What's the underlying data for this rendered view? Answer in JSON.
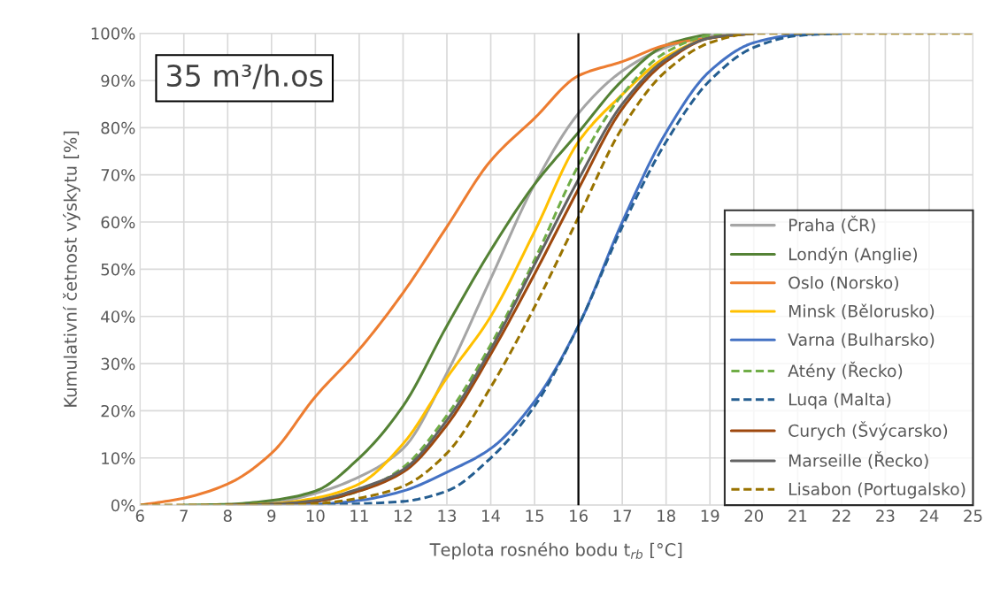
{
  "chart_data": {
    "type": "line",
    "xlabel": "Teplota rosného bodu t$_{rb}$ [°C]",
    "ylabel": "Kumulativní četnost výskytu [%]",
    "annotations": [
      "35 m³/h.os"
    ],
    "x": [
      6,
      7,
      8,
      9,
      10,
      11,
      12,
      13,
      14,
      15,
      16,
      17,
      18,
      19,
      20,
      21,
      22,
      23,
      24,
      25
    ],
    "series": [
      {
        "name": "Praha (ČR)",
        "color": "#a5a5a5",
        "line_style": "solid",
        "values": [
          null,
          null,
          0,
          0.5,
          2.5,
          6,
          12,
          28,
          48,
          68,
          83,
          92,
          97,
          99.5,
          100,
          null,
          null,
          null,
          null,
          null
        ]
      },
      {
        "name": "Londýn (Anglie)",
        "color": "#548235",
        "line_style": "solid",
        "values": [
          null,
          0,
          0.2,
          1,
          3,
          10,
          21,
          38,
          54,
          68,
          79,
          90,
          97.5,
          100,
          null,
          null,
          null,
          null,
          null,
          null
        ]
      },
      {
        "name": "Oslo (Norsko)",
        "color": "#ed7d31",
        "line_style": "solid",
        "values": [
          0,
          1.5,
          4.5,
          11,
          23,
          33,
          45,
          59,
          73,
          82,
          91,
          94,
          97.5,
          99,
          100,
          null,
          null,
          null,
          null,
          null
        ]
      },
      {
        "name": "Minsk (Bělorusko)",
        "color": "#ffc000",
        "line_style": "solid",
        "values": [
          null,
          null,
          0,
          0.3,
          1.5,
          4.5,
          13,
          27,
          40,
          58,
          77,
          87,
          95,
          99,
          100,
          null,
          null,
          null,
          null,
          null
        ]
      },
      {
        "name": "Varna (Bulharsko)",
        "color": "#4472c4",
        "line_style": "solid",
        "values": [
          null,
          null,
          null,
          0,
          0.2,
          1,
          3,
          7,
          12,
          22,
          38,
          60,
          79,
          92,
          98,
          99.7,
          100,
          null,
          null,
          null
        ]
      },
      {
        "name": "Atény (Řecko)",
        "color": "#70ad47",
        "line_style": "dashed",
        "values": [
          null,
          null,
          0,
          0.2,
          0.8,
          3,
          8,
          19,
          34,
          52,
          72,
          87,
          96,
          99.5,
          100,
          null,
          null,
          null,
          null,
          null
        ]
      },
      {
        "name": "Luqa (Malta)",
        "color": "#255e91",
        "line_style": "dashed",
        "values": [
          null,
          null,
          null,
          null,
          0,
          0.3,
          0.8,
          3,
          10,
          21,
          38,
          59,
          77,
          90,
          97,
          99.5,
          100,
          null,
          null,
          null
        ]
      },
      {
        "name": "Curych (Švýcarsko)",
        "color": "#9e480e",
        "line_style": "solid",
        "values": [
          null,
          null,
          0,
          0.2,
          0.8,
          3,
          7,
          17,
          32,
          49,
          67,
          84,
          94,
          99,
          100,
          null,
          null,
          null,
          null,
          null
        ]
      },
      {
        "name": "Marseille (Řecko)",
        "color": "#636363",
        "line_style": "solid",
        "values": [
          null,
          null,
          0,
          0.2,
          1,
          3.5,
          7.5,
          18,
          33,
          51,
          69,
          85,
          94.5,
          99,
          100,
          null,
          null,
          null,
          null,
          null
        ]
      },
      {
        "name": "Lisabon (Portugalsko)",
        "color": "#997300",
        "line_style": "dashed",
        "values": [
          0,
          0,
          0,
          0,
          0.3,
          1.5,
          4,
          11,
          25,
          42,
          61,
          80,
          92,
          98,
          100,
          100,
          100,
          100,
          100,
          100
        ]
      }
    ],
    "xlim": [
      6,
      25
    ],
    "xticks": [
      6,
      7,
      8,
      9,
      10,
      11,
      12,
      13,
      14,
      15,
      16,
      17,
      18,
      19,
      20,
      21,
      22,
      23,
      24,
      25
    ],
    "ylim": [
      0,
      100
    ],
    "yticks": [
      {
        "value": 0,
        "label": "0%"
      },
      {
        "value": 10,
        "label": "10%"
      },
      {
        "value": 20,
        "label": "20%"
      },
      {
        "value": 30,
        "label": "30%"
      },
      {
        "value": 40,
        "label": "40%"
      },
      {
        "value": 50,
        "label": "50%"
      },
      {
        "value": 60,
        "label": "60%"
      },
      {
        "value": 70,
        "label": "70%"
      },
      {
        "value": 80,
        "label": "80%"
      },
      {
        "value": 90,
        "label": "90%"
      },
      {
        "value": 100,
        "label": "100%"
      }
    ],
    "ref_lines": [
      {
        "axis": "x",
        "value": 16,
        "color": "#000000",
        "line_style": "solid"
      }
    ],
    "grid": true,
    "legend": "bottom right"
  }
}
